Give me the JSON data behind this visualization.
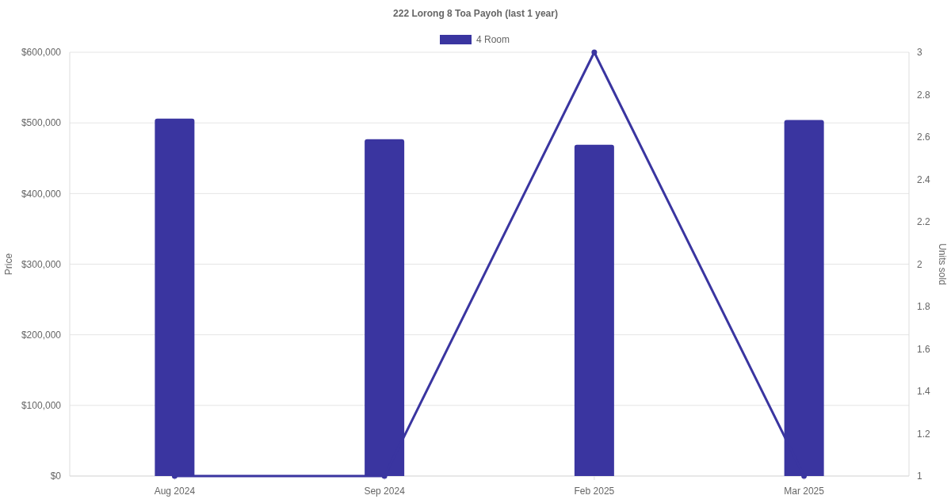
{
  "chart_data": {
    "type": "bar",
    "title": "222 Lorong 8 Toa Payoh (last 1 year)",
    "categories": [
      "Aug 2024",
      "Sep 2024",
      "Feb 2025",
      "Mar 2025"
    ],
    "series": [
      {
        "name": "4 Room",
        "color": "#3a35a0",
        "values": [
          506000,
          477000,
          469000,
          504000
        ]
      },
      {
        "type": "line",
        "axis": "y2",
        "color": "#3a35a0",
        "values": [
          1,
          1,
          3,
          1
        ]
      }
    ],
    "ylabel": "Price",
    "y2label": "Units sold",
    "ylim": [
      0,
      600000
    ],
    "yticks": [
      {
        "value": 0,
        "label": "$0"
      },
      {
        "value": 100000,
        "label": "$100,000"
      },
      {
        "value": 200000,
        "label": "$200,000"
      },
      {
        "value": 300000,
        "label": "$300,000"
      },
      {
        "value": 400000,
        "label": "$400,000"
      },
      {
        "value": 500000,
        "label": "$500,000"
      },
      {
        "value": 600000,
        "label": "$600,000"
      }
    ],
    "y2lim": [
      1,
      3
    ],
    "y2ticks": [
      1,
      1.2,
      1.4,
      1.6,
      1.8,
      2,
      2.2,
      2.4,
      2.6,
      2.8,
      3
    ],
    "grid": "y",
    "legend": "top",
    "marker": "circle",
    "line_style": "solid"
  }
}
